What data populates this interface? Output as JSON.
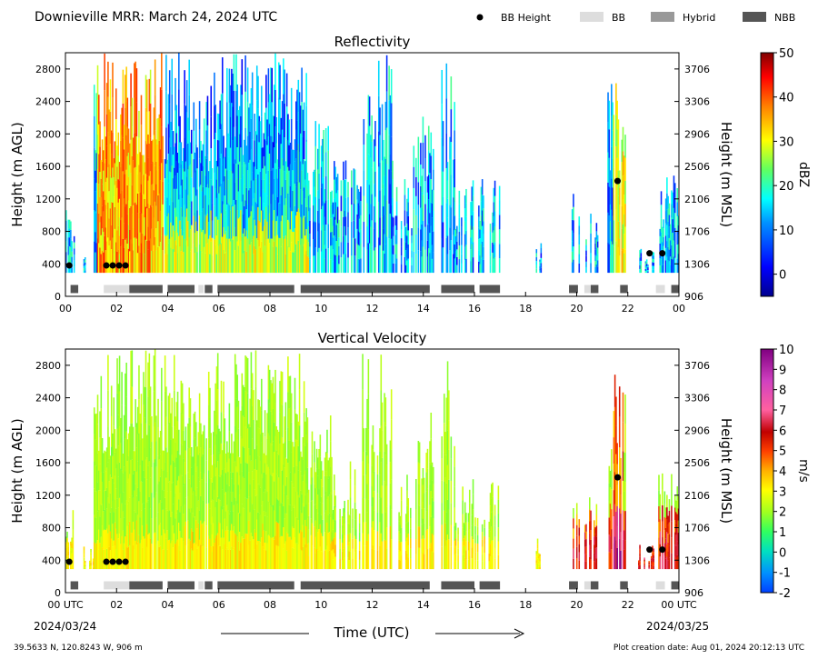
{
  "header": {
    "title": "Downieville MRR:  March 24, 2024 UTC",
    "legend": [
      {
        "label": "BB Height",
        "kind": "dot",
        "color": "#000000"
      },
      {
        "label": "BB",
        "kind": "bar",
        "color": "#dddddd"
      },
      {
        "label": "Hybrid",
        "kind": "bar",
        "color": "#999999"
      },
      {
        "label": "NBB",
        "kind": "bar",
        "color": "#555555"
      }
    ]
  },
  "chart_data": [
    {
      "type": "heatmap",
      "title": "Reflectivity",
      "ylabel": "Height (m AGL)",
      "ylabel_right": "Height (m MSL)",
      "yticks": [
        0,
        400,
        800,
        1200,
        1600,
        2000,
        2400,
        2800
      ],
      "yticks_right": [
        906,
        1306,
        1706,
        2106,
        2506,
        2906,
        3306,
        3706
      ],
      "xticks": [
        "00",
        "02",
        "04",
        "06",
        "08",
        "10",
        "12",
        "14",
        "16",
        "18",
        "20",
        "22",
        "00"
      ],
      "xlim": [
        0,
        24
      ],
      "ylim": [
        0,
        3000
      ],
      "colorbar": {
        "label": "dBZ",
        "min": -5,
        "max": 50,
        "ticks": [
          0,
          10,
          20,
          30,
          40,
          50
        ]
      },
      "bright_band_height_m_agl": [
        {
          "x": 0.15,
          "y": 380
        },
        {
          "x": 1.6,
          "y": 380
        },
        {
          "x": 1.85,
          "y": 380
        },
        {
          "x": 2.1,
          "y": 380
        },
        {
          "x": 2.35,
          "y": 380
        },
        {
          "x": 21.6,
          "y": 1420
        },
        {
          "x": 22.85,
          "y": 530
        },
        {
          "x": 23.35,
          "y": 530
        }
      ]
    },
    {
      "type": "heatmap",
      "title": "Vertical Velocity",
      "ylabel": "Height (m AGL)",
      "ylabel_right": "Height (m MSL)",
      "yticks": [
        0,
        400,
        800,
        1200,
        1600,
        2000,
        2400,
        2800
      ],
      "yticks_right": [
        906,
        1306,
        1706,
        2106,
        2506,
        2906,
        3306,
        3706
      ],
      "xticks": [
        "00 UTC",
        "02",
        "04",
        "06",
        "08",
        "10",
        "12",
        "14",
        "16",
        "18",
        "20",
        "22",
        "00 UTC"
      ],
      "xlim": [
        0,
        24
      ],
      "ylim": [
        0,
        3000
      ],
      "colorbar": {
        "label": "m/s",
        "min": -2,
        "max": 10,
        "ticks": [
          -2,
          -1,
          0,
          1,
          2,
          3,
          4,
          5,
          6,
          7,
          8,
          9,
          10
        ]
      },
      "bright_band_height_m_agl": [
        {
          "x": 0.15,
          "y": 380
        },
        {
          "x": 1.6,
          "y": 380
        },
        {
          "x": 1.85,
          "y": 380
        },
        {
          "x": 2.1,
          "y": 380
        },
        {
          "x": 2.35,
          "y": 380
        },
        {
          "x": 21.6,
          "y": 1420
        },
        {
          "x": 22.85,
          "y": 530
        },
        {
          "x": 23.35,
          "y": 530
        }
      ]
    }
  ],
  "bb_type_segments": [
    {
      "start": 0.2,
      "end": 0.5,
      "type": "NBB"
    },
    {
      "start": 1.5,
      "end": 2.5,
      "type": "BB"
    },
    {
      "start": 2.5,
      "end": 3.8,
      "type": "NBB"
    },
    {
      "start": 4.0,
      "end": 5.05,
      "type": "NBB"
    },
    {
      "start": 5.2,
      "end": 5.4,
      "type": "BB"
    },
    {
      "start": 5.45,
      "end": 5.75,
      "type": "NBB"
    },
    {
      "start": 5.95,
      "end": 8.95,
      "type": "NBB"
    },
    {
      "start": 9.2,
      "end": 14.25,
      "type": "NBB"
    },
    {
      "start": 14.7,
      "end": 16.0,
      "type": "NBB"
    },
    {
      "start": 16.2,
      "end": 17.0,
      "type": "NBB"
    },
    {
      "start": 19.7,
      "end": 20.05,
      "type": "NBB"
    },
    {
      "start": 20.3,
      "end": 20.55,
      "type": "BB"
    },
    {
      "start": 20.55,
      "end": 20.85,
      "type": "NBB"
    },
    {
      "start": 21.7,
      "end": 22.0,
      "type": "NBB"
    },
    {
      "start": 23.1,
      "end": 23.45,
      "type": "BB"
    },
    {
      "start": 23.7,
      "end": 24.0,
      "type": "NBB"
    }
  ],
  "xaxis": {
    "date_start": "2024/03/24",
    "date_end": "2024/03/25",
    "label": "Time (UTC)"
  },
  "footer": {
    "location": "39.5633 N, 120.8243 W, 906 m",
    "creation": "Plot creation date: Aug 01, 2024 20:12:13 UTC"
  }
}
